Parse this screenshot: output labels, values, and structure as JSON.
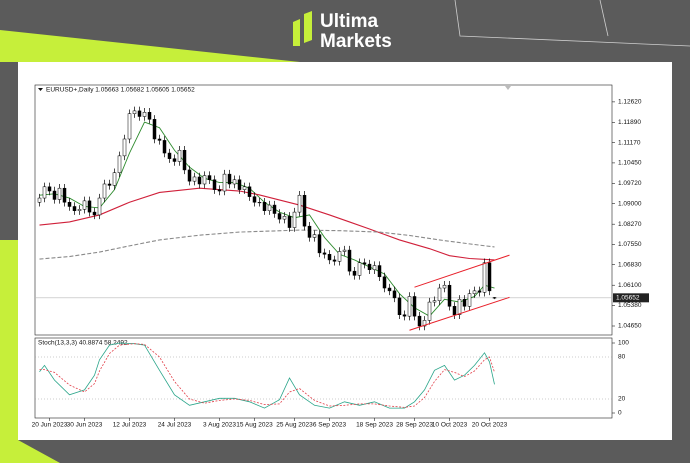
{
  "header": {
    "brand_line1": "Ultima",
    "brand_line2": "Markets"
  },
  "chart_data": [
    {
      "type": "candlestick",
      "title": "EURUSD+,Daily 1.05663 1.05682 1.05605 1.05652",
      "up_color": "#ffffff",
      "down_color": "#000000",
      "open": [
        1.0905,
        1.092,
        1.096,
        1.0945,
        1.0915,
        1.0955,
        1.0905,
        1.089,
        1.0875,
        1.088,
        1.091,
        1.087,
        1.086,
        1.092,
        1.097,
        1.0965,
        1.101,
        1.107,
        1.113,
        1.122,
        1.123,
        1.121,
        1.1225,
        1.12,
        1.113,
        1.1125,
        1.108,
        1.106,
        1.105,
        1.109,
        1.102,
        1.098,
        1.0995,
        1.097,
        1.1,
        1.0985,
        1.095,
        1.0945,
        1.1005,
        1.097,
        1.0985,
        1.095,
        1.096,
        1.0925,
        1.0905,
        1.0905,
        1.0875,
        1.0895,
        1.0865,
        1.0845,
        1.0855,
        1.0815,
        1.087,
        1.093,
        1.082,
        1.078,
        1.079,
        1.0725,
        1.072,
        1.07,
        1.0695,
        1.073,
        1.0735,
        1.066,
        1.0645,
        1.069,
        1.0685,
        1.0665,
        1.068,
        1.064,
        1.06,
        1.059,
        1.0565,
        1.0505,
        1.05,
        1.057,
        1.05,
        1.0465,
        1.0485,
        1.055,
        1.0555,
        1.06,
        1.061,
        1.0535,
        1.0505,
        1.056,
        1.0535,
        1.058,
        1.059,
        1.0585,
        1.069,
        1.05663
      ],
      "high": [
        1.0935,
        1.0975,
        1.0975,
        1.096,
        1.097,
        1.097,
        1.092,
        1.0905,
        1.0895,
        1.0925,
        1.0925,
        1.0885,
        1.0935,
        1.0985,
        1.0985,
        1.1025,
        1.1085,
        1.1145,
        1.1235,
        1.1245,
        1.1245,
        1.124,
        1.124,
        1.1215,
        1.1145,
        1.114,
        1.1095,
        1.1075,
        1.1105,
        1.1105,
        1.1035,
        1.101,
        1.101,
        1.1015,
        1.1015,
        1.1,
        1.0965,
        1.102,
        1.102,
        1.1,
        1.1,
        1.0975,
        1.0975,
        1.094,
        1.092,
        1.092,
        1.091,
        1.091,
        1.088,
        1.087,
        1.087,
        1.0885,
        1.0945,
        1.0945,
        1.0835,
        1.0805,
        1.0805,
        1.074,
        1.0735,
        1.0715,
        1.0745,
        1.075,
        1.075,
        1.0675,
        1.0705,
        1.0705,
        1.07,
        1.0695,
        1.0695,
        1.0655,
        1.0615,
        1.0605,
        1.058,
        1.052,
        1.0585,
        1.0585,
        1.0515,
        1.05,
        1.0565,
        1.057,
        1.0615,
        1.0625,
        1.0625,
        1.055,
        1.0575,
        1.0575,
        1.0595,
        1.0605,
        1.0605,
        1.0705,
        1.0705,
        1.05682
      ],
      "low": [
        1.089,
        1.0905,
        1.093,
        1.09,
        1.09,
        1.089,
        1.0875,
        1.086,
        1.086,
        1.0865,
        1.0855,
        1.0845,
        1.0845,
        1.0905,
        1.095,
        1.095,
        1.0995,
        1.1055,
        1.1115,
        1.1205,
        1.1195,
        1.1195,
        1.1185,
        1.1115,
        1.111,
        1.1065,
        1.1045,
        1.1035,
        1.1035,
        1.1005,
        1.0965,
        1.0965,
        1.0955,
        1.0955,
        1.097,
        1.0935,
        1.093,
        1.093,
        1.0955,
        1.0955,
        1.0935,
        1.0935,
        1.091,
        1.089,
        1.089,
        1.086,
        1.086,
        1.085,
        1.083,
        1.083,
        1.08,
        1.08,
        1.0855,
        1.0805,
        1.0765,
        1.0765,
        1.071,
        1.0705,
        1.0685,
        1.068,
        1.068,
        1.0715,
        1.0645,
        1.063,
        1.063,
        1.067,
        1.065,
        1.065,
        1.0625,
        1.0585,
        1.0575,
        1.055,
        1.049,
        1.0485,
        1.0485,
        1.0485,
        1.045,
        1.045,
        1.047,
        1.0535,
        1.054,
        1.0585,
        1.052,
        1.049,
        1.049,
        1.052,
        1.052,
        1.0565,
        1.057,
        1.057,
        1.0575,
        1.05605
      ],
      "close": [
        1.092,
        1.096,
        1.0945,
        1.0915,
        1.0955,
        1.0905,
        1.089,
        1.0875,
        1.088,
        1.091,
        1.087,
        1.086,
        1.092,
        1.097,
        1.0965,
        1.101,
        1.107,
        1.113,
        1.122,
        1.123,
        1.121,
        1.1225,
        1.12,
        1.113,
        1.1125,
        1.108,
        1.106,
        1.105,
        1.109,
        1.102,
        1.098,
        1.0995,
        1.097,
        1.1,
        1.0985,
        1.095,
        1.0945,
        1.1005,
        1.097,
        1.0985,
        1.095,
        1.096,
        1.0925,
        1.0905,
        1.0905,
        1.0875,
        1.0895,
        1.0865,
        1.0845,
        1.0855,
        1.0815,
        1.087,
        1.093,
        1.082,
        1.078,
        1.079,
        1.0725,
        1.072,
        1.07,
        1.0695,
        1.073,
        1.0735,
        1.066,
        1.0645,
        1.069,
        1.0685,
        1.0665,
        1.068,
        1.064,
        1.06,
        1.059,
        1.0565,
        1.0505,
        1.05,
        1.057,
        1.05,
        1.0465,
        1.0485,
        1.055,
        1.0555,
        1.06,
        1.061,
        1.0535,
        1.0505,
        1.056,
        1.0535,
        1.058,
        1.059,
        1.0585,
        1.069,
        1.059,
        1.05652
      ],
      "lines": [
        {
          "color": "#2e8b2e",
          "style": "solid",
          "x": [
            0,
            3,
            6,
            9,
            12,
            15,
            18,
            21,
            24,
            27,
            30,
            33,
            36,
            39,
            42,
            45,
            48,
            51,
            54,
            57,
            60,
            63,
            66,
            69,
            72,
            75,
            78,
            81,
            84,
            87,
            89,
            91
          ],
          "values": [
            1.093,
            1.0935,
            1.092,
            1.089,
            1.0885,
            1.095,
            1.108,
            1.119,
            1.117,
            1.109,
            1.103,
            1.099,
            1.0975,
            1.0975,
            1.0955,
            1.0905,
            1.087,
            1.085,
            1.086,
            1.078,
            1.072,
            1.07,
            1.0675,
            1.065,
            1.058,
            1.053,
            1.05,
            1.056,
            1.055,
            1.057,
            1.061,
            1.06
          ]
        },
        {
          "color": "#d0203a",
          "style": "solid",
          "x": [
            0,
            6,
            12,
            18,
            24,
            32,
            40,
            44,
            52,
            58,
            62,
            66,
            72,
            78,
            82,
            86,
            91
          ],
          "values": [
            1.0824,
            1.0835,
            1.086,
            1.0905,
            1.094,
            1.0955,
            1.0945,
            1.0931,
            1.0895,
            1.086,
            1.0835,
            1.081,
            1.0771,
            1.074,
            1.0715,
            1.0705,
            1.07
          ]
        },
        {
          "color": "#8a8a8a",
          "style": "dashed",
          "x": [
            0,
            6,
            12,
            18,
            24,
            32,
            40,
            52,
            60,
            68,
            74,
            80,
            86,
            91
          ],
          "values": [
            1.0703,
            1.0712,
            1.0728,
            1.075,
            1.0771,
            1.0788,
            1.0799,
            1.0806,
            1.0804,
            1.0799,
            1.0787,
            1.0771,
            1.0757,
            1.0746
          ]
        }
      ],
      "trendlines": [
        {
          "color": "#e8202a",
          "x": [
            75,
            94
          ],
          "values": [
            1.0603,
            1.0717
          ]
        },
        {
          "color": "#e8202a",
          "x": [
            74,
            94
          ],
          "values": [
            1.045,
            1.0567
          ]
        }
      ],
      "xlim": [
        -0.5,
        114.5
      ],
      "xticks": [
        {
          "value": 2,
          "label": "20 Jun 2023"
        },
        {
          "value": 9,
          "label": "30 Jun 2023"
        },
        {
          "value": 18,
          "label": "12 Jul 2023"
        },
        {
          "value": 27,
          "label": "24 Jul 2023"
        },
        {
          "value": 36,
          "label": "3 Aug 2023"
        },
        {
          "value": 43,
          "label": "15 Aug 2023"
        },
        {
          "value": 51,
          "label": "25 Aug 2023"
        },
        {
          "value": 58,
          "label": "6 Sep 2023"
        },
        {
          "value": 67,
          "label": "18 Sep 2023"
        },
        {
          "value": 75,
          "label": "28 Sep 2023"
        },
        {
          "value": 82,
          "label": "10 Oct 2023"
        },
        {
          "value": 90,
          "label": "20 Oct 2023"
        }
      ],
      "ylim": [
        1.0433,
        1.1322
      ],
      "yticks": [
        {
          "value": 1.1262,
          "label": "1.12620"
        },
        {
          "value": 1.1189,
          "label": "1.11890"
        },
        {
          "value": 1.1117,
          "label": "1.11170"
        },
        {
          "value": 1.1045,
          "label": "1.10450"
        },
        {
          "value": 1.0972,
          "label": "1.09720"
        },
        {
          "value": 1.09,
          "label": "1.09000"
        },
        {
          "value": 1.0827,
          "label": "1.08270"
        },
        {
          "value": 1.0755,
          "label": "1.07550"
        },
        {
          "value": 1.0683,
          "label": "1.06830"
        },
        {
          "value": 1.061,
          "label": "1.06100"
        },
        {
          "value": 1.0538,
          "label": "1.05380"
        },
        {
          "value": 1.0465,
          "label": "1.04650"
        }
      ]
    },
    {
      "type": "line",
      "title": "Stoch(13,3,3) 40.8874 58.2492",
      "x": [
        0,
        1,
        3,
        6,
        9,
        11,
        12,
        14,
        16,
        19,
        21,
        24,
        27,
        30,
        33,
        36,
        39,
        42,
        45,
        48,
        50,
        52,
        55,
        58,
        61,
        64,
        67,
        70,
        73,
        75,
        77,
        79,
        81,
        83,
        85,
        87,
        89,
        90,
        91
      ],
      "series": [
        {
          "color": "#2aa58a",
          "style": "solid",
          "values": [
            59,
            68,
            47,
            26,
            33,
            54,
            76,
            97,
            100,
            99,
            97,
            61,
            26,
            11,
            16,
            21,
            21,
            16,
            7,
            19,
            50,
            26,
            11,
            7,
            16,
            11,
            16,
            7,
            7,
            16,
            33,
            61,
            68,
            47,
            54,
            68,
            86,
            73,
            40.8874
          ]
        },
        {
          "color": "#e2404a",
          "style": "dashed",
          "values": [
            62,
            62,
            58,
            40,
            30,
            42,
            60,
            85,
            97,
            99,
            98,
            80,
            45,
            20,
            14,
            18,
            20,
            18,
            12,
            13,
            30,
            35,
            18,
            10,
            11,
            13,
            13,
            10,
            8,
            10,
            22,
            45,
            62,
            58,
            52,
            60,
            76,
            80,
            58.2492
          ]
        }
      ],
      "xlim": [
        -0.5,
        114.5
      ],
      "ylim": [
        0,
        100
      ],
      "yticks": [
        100,
        80,
        20,
        0
      ]
    }
  ]
}
